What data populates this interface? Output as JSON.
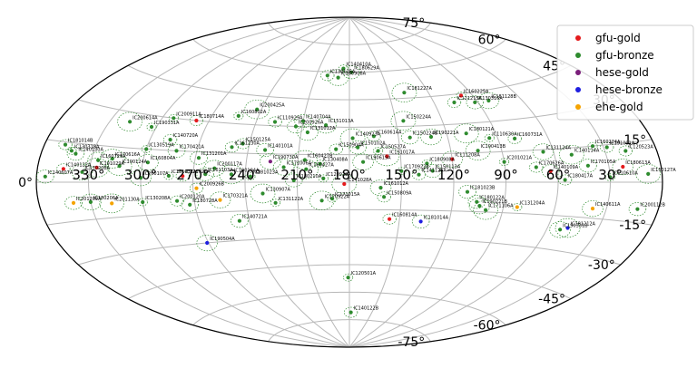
{
  "chart_data": {
    "type": "scatter",
    "projection": "aitoff",
    "title": "",
    "xlabel": "",
    "ylabel": "",
    "grid": true,
    "legend_position": "top-right",
    "lon_ticks": [
      "330°",
      "300°",
      "270°",
      "240°",
      "210°",
      "180°",
      "150°",
      "120°",
      "90°",
      "60°",
      "30°"
    ],
    "lon_tick_values": [
      330,
      300,
      270,
      240,
      210,
      180,
      150,
      120,
      90,
      60,
      30
    ],
    "lat_ticks": [
      "75°",
      "60°",
      "45°",
      "30°",
      "15°",
      "0°",
      "-15°",
      "-30°",
      "-45°",
      "-60°",
      "-75°"
    ],
    "lat_tick_values": [
      75,
      60,
      45,
      30,
      15,
      0,
      -15,
      -30,
      -45,
      -60,
      -75
    ],
    "series": [
      {
        "name": "gfu-gold",
        "color": "#e41a1c"
      },
      {
        "name": "gfu-bronze",
        "color": "#2e8b2e"
      },
      {
        "name": "hese-gold",
        "color": "#7b1f7b"
      },
      {
        "name": "hese-bronze",
        "color": "#1f1fe0"
      },
      {
        "name": "ehe-gold",
        "color": "#f5a300"
      }
    ],
    "events": [
      {
        "name": "IC140410A",
        "ra": 186,
        "dec": 62,
        "series": "gfu-bronze"
      },
      {
        "name": "IC130125A",
        "ra": 200,
        "dec": 58,
        "series": "gfu-bronze"
      },
      {
        "name": "IC180629A",
        "ra": 178,
        "dec": 60,
        "series": "gfu-bronze"
      },
      {
        "name": "IC160908A",
        "ra": 190,
        "dec": 57,
        "series": "gfu-bronze"
      },
      {
        "name": "IC181227A",
        "ra": 138,
        "dec": 48,
        "series": "gfu-bronze"
      },
      {
        "name": "IC160225A",
        "ra": 98,
        "dec": 44,
        "series": "gfu-gold"
      },
      {
        "name": "IC121215A",
        "ra": 106,
        "dec": 41,
        "series": "gfu-bronze"
      },
      {
        "name": "IC130316A",
        "ra": 92,
        "dec": 40,
        "series": "gfu-bronze"
      },
      {
        "name": "IC181128B",
        "ra": 82,
        "dec": 40,
        "series": "gfu-bronze"
      },
      {
        "name": "IC200425A",
        "ra": 243,
        "dec": 38,
        "series": "gfu-bronze"
      },
      {
        "name": "IC160802A",
        "ra": 253,
        "dec": 34,
        "series": "gfu-bronze"
      },
      {
        "name": "IC110929A",
        "ra": 228,
        "dec": 32,
        "series": "gfu-bronze"
      },
      {
        "name": "IC140704A",
        "ra": 210,
        "dec": 33,
        "series": "gfu-bronze"
      },
      {
        "name": "IC151013A",
        "ra": 195,
        "dec": 31,
        "series": "gfu-bronze"
      },
      {
        "name": "IC150224A",
        "ra": 145,
        "dec": 33,
        "series": "gfu-bronze"
      },
      {
        "name": "IC200911A",
        "ra": 293,
        "dec": 30,
        "series": "gfu-bronze"
      },
      {
        "name": "IC180714A",
        "ra": 278,
        "dec": 30,
        "series": "gfu-gold"
      },
      {
        "name": "IC200926A",
        "ra": 214,
        "dec": 30,
        "series": "gfu-bronze"
      },
      {
        "name": "IC131012A",
        "ra": 206,
        "dec": 27,
        "series": "gfu-bronze"
      },
      {
        "name": "IC200614A",
        "ra": 318,
        "dec": 26,
        "series": "gfu-bronze"
      },
      {
        "name": "IC190331A",
        "ra": 303,
        "dec": 25,
        "series": "gfu-bronze"
      },
      {
        "name": "IC160614A",
        "ra": 165,
        "dec": 25,
        "series": "gfu-bronze"
      },
      {
        "name": "IC150224B",
        "ra": 143,
        "dec": 24,
        "series": "gfu-bronze"
      },
      {
        "name": "IC190221A",
        "ra": 130,
        "dec": 24,
        "series": "gfu-bronze"
      },
      {
        "name": "IC180121A",
        "ra": 108,
        "dec": 25,
        "series": "gfu-bronze"
      },
      {
        "name": "IC110630A",
        "ra": 95,
        "dec": 22,
        "series": "gfu-bronze"
      },
      {
        "name": "IC160731A",
        "ra": 80,
        "dec": 21,
        "series": "gfu-bronze"
      },
      {
        "name": "IC140721A",
        "ra": 246,
        "dec": -20,
        "series": "gfu-bronze"
      },
      {
        "name": "IC190504A",
        "ra": 271,
        "dec": -30,
        "series": "hese-bronze"
      },
      {
        "name": "IC170922A",
        "ra": 196,
        "dec": -10,
        "series": "gfu-bronze"
      },
      {
        "name": "IC171015A",
        "ra": 190,
        "dec": -9,
        "series": "gfu-bronze"
      },
      {
        "name": "IC160814A",
        "ra": 156,
        "dec": -20,
        "series": "gfu-gold"
      },
      {
        "name": "IC181014A",
        "ra": 137,
        "dec": -21,
        "series": "hese-bronze"
      },
      {
        "name": "IC190331B",
        "ra": 52,
        "dec": -21,
        "series": "gfu-bronze"
      },
      {
        "name": "IC181212A",
        "ra": 48,
        "dec": -20,
        "series": "hese-bronze"
      },
      {
        "name": "IC120501A",
        "ra": 181,
        "dec": -52,
        "series": "gfu-bronze"
      },
      {
        "name": "IC140122B",
        "ra": 178,
        "dec": -71,
        "series": "gfu-bronze"
      },
      {
        "name": "IC201209A",
        "ra": 340,
        "dec": -8,
        "series": "ehe-gold"
      },
      {
        "name": "IC180206A",
        "ra": 330,
        "dec": -8,
        "series": "gfu-bronze"
      },
      {
        "name": "IC201130A",
        "ra": 318,
        "dec": -9,
        "series": "ehe-gold"
      },
      {
        "name": "IC130208A",
        "ra": 300,
        "dec": -9,
        "series": "gfu-bronze"
      },
      {
        "name": "IC200120A",
        "ra": 280,
        "dec": -9,
        "series": "gfu-bronze"
      },
      {
        "name": "IC180728A",
        "ra": 273,
        "dec": -11,
        "series": "gfu-bronze"
      },
      {
        "name": "IC170321A",
        "ra": 255,
        "dec": -9,
        "series": "ehe-gold"
      },
      {
        "name": "IC130907A",
        "ra": 230,
        "dec": -6,
        "series": "gfu-bronze"
      },
      {
        "name": "IC131122A",
        "ra": 223,
        "dec": -11,
        "series": "gfu-bronze"
      },
      {
        "name": "IC150809A",
        "ra": 160,
        "dec": -8,
        "series": "gfu-bronze"
      },
      {
        "name": "IC180122A",
        "ra": 106,
        "dec": -10,
        "series": "gfu-bronze"
      },
      {
        "name": "IC190221B",
        "ra": 104,
        "dec": -12,
        "series": "gfu-bronze"
      },
      {
        "name": "IC171106A",
        "ra": 100,
        "dec": -14,
        "series": "gfu-bronze"
      },
      {
        "name": "IC131204A",
        "ra": 82,
        "dec": -12,
        "series": "ehe-gold"
      },
      {
        "name": "IC140122A",
        "ra": 345,
        "dec": 5,
        "series": "gfu-gold"
      },
      {
        "name": "IC140607A",
        "ra": 355,
        "dec": 2,
        "series": "gfu-bronze"
      },
      {
        "name": "IC170208A",
        "ra": 334,
        "dec": 4,
        "series": "gfu-bronze"
      },
      {
        "name": "IC191029A",
        "ra": 326,
        "dec": 6,
        "series": "gfu-gold"
      },
      {
        "name": "IC130318A",
        "ra": 343,
        "dec": 12,
        "series": "gfu-bronze"
      },
      {
        "name": "IC181014B",
        "ra": 348,
        "dec": 14,
        "series": "gfu-bronze"
      },
      {
        "name": "IC140130A",
        "ra": 340,
        "dec": 11,
        "series": "gfu-bronze"
      },
      {
        "name": "IC160729A",
        "ra": 326,
        "dec": 9,
        "series": "gfu-bronze"
      },
      {
        "name": "IC170616A",
        "ra": 318,
        "dec": 10,
        "series": "gfu-bronze"
      },
      {
        "name": "IC130519A",
        "ra": 300,
        "dec": 15,
        "series": "gfu-bronze"
      },
      {
        "name": "IC140720A",
        "ra": 288,
        "dec": 20,
        "series": "gfu-bronze"
      },
      {
        "name": "IC170421A",
        "ra": 282,
        "dec": 15,
        "series": "gfu-bronze"
      },
      {
        "name": "IC160804A",
        "ra": 297,
        "dec": 9,
        "series": "gfu-bronze"
      },
      {
        "name": "IC190124A",
        "ra": 313,
        "dec": 7,
        "series": "gfu-bronze"
      },
      {
        "name": "IC181031A",
        "ra": 284,
        "dec": 3,
        "series": "gfu-bronze"
      },
      {
        "name": "IC121026A",
        "ra": 276,
        "dec": 3,
        "series": "gfu-gold"
      },
      {
        "name": "IC161103A",
        "ra": 263,
        "dec": 4,
        "series": "gfu-bronze"
      },
      {
        "name": "IC200117A",
        "ra": 258,
        "dec": 7,
        "series": "gfu-bronze"
      },
      {
        "name": "IC190104A",
        "ra": 248,
        "dec": 4,
        "series": "gfu-bronze"
      },
      {
        "name": "IC181023A",
        "ra": 237,
        "dec": 3,
        "series": "gfu-bronze"
      },
      {
        "name": "IC161230A",
        "ra": 250,
        "dec": 18,
        "series": "gfu-bronze"
      },
      {
        "name": "IC140101A",
        "ra": 230,
        "dec": 17,
        "series": "gfu-bronze"
      },
      {
        "name": "IC171006A",
        "ra": 218,
        "dec": 8,
        "series": "gfu-bronze"
      },
      {
        "name": "IC160427A",
        "ra": 205,
        "dec": 7,
        "series": "gfu-bronze"
      },
      {
        "name": "IC130408A",
        "ra": 197,
        "dec": 10,
        "series": "gfu-bronze"
      },
      {
        "name": "IC150904A",
        "ra": 188,
        "dec": 18,
        "series": "gfu-bronze"
      },
      {
        "name": "IC150102A",
        "ra": 175,
        "dec": 19,
        "series": "gfu-bronze"
      },
      {
        "name": "IC190619A",
        "ra": 172,
        "dec": 11,
        "series": "gfu-bronze"
      },
      {
        "name": "IC151017A",
        "ra": 158,
        "dec": 14,
        "series": "gfu-gold"
      },
      {
        "name": "IC170922B",
        "ra": 150,
        "dec": 6,
        "series": "gfu-bronze"
      },
      {
        "name": "IC141126A",
        "ra": 140,
        "dec": 4,
        "series": "gfu-bronze"
      },
      {
        "name": "IC150113A",
        "ra": 132,
        "dec": 6,
        "series": "gfu-bronze"
      },
      {
        "name": "IC111208A",
        "ra": 120,
        "dec": 12,
        "series": "gfu-gold"
      },
      {
        "name": "IC190413B",
        "ra": 104,
        "dec": 16,
        "series": "gfu-bronze"
      },
      {
        "name": "IC201021A",
        "ra": 90,
        "dec": 10,
        "series": "gfu-bronze"
      },
      {
        "name": "IC170626A",
        "ra": 72,
        "dec": 7,
        "series": "gfu-bronze"
      },
      {
        "name": "IC140109A",
        "ra": 64,
        "dec": 5,
        "series": "gfu-gold"
      },
      {
        "name": "IC131124A",
        "ra": 66,
        "dec": 14,
        "series": "gfu-bronze"
      },
      {
        "name": "IC140114A",
        "ra": 50,
        "dec": 12,
        "series": "gfu-bronze"
      },
      {
        "name": "IC160224A",
        "ra": 36,
        "dec": 15,
        "series": "gfu-bronze"
      },
      {
        "name": "IC120523A",
        "ra": 18,
        "dec": 12,
        "series": "gfu-bronze"
      },
      {
        "name": "IC170105A",
        "ra": 42,
        "dec": 7,
        "series": "gfu-bronze"
      },
      {
        "name": "IC180613A",
        "ra": 22,
        "dec": 6,
        "series": "gfu-gold"
      },
      {
        "name": "IC150127A",
        "ra": 8,
        "dec": 3,
        "series": "gfu-bronze"
      },
      {
        "name": "IC110610A",
        "ra": 30,
        "dec": 2,
        "series": "gfu-bronze"
      },
      {
        "name": "IC180417A",
        "ra": 56,
        "dec": 1,
        "series": "gfu-bronze"
      },
      {
        "name": "IC181023B",
        "ra": 112,
        "dec": -5,
        "series": "gfu-bronze"
      },
      {
        "name": "IC161012A",
        "ra": 162,
        "dec": -3,
        "series": "gfu-bronze"
      },
      {
        "name": "IC141028A",
        "ra": 183,
        "dec": -1,
        "series": "gfu-gold"
      },
      {
        "name": "IC120922A",
        "ra": 195,
        "dec": 2,
        "series": "gfu-bronze"
      },
      {
        "name": "IC200926B",
        "ra": 268,
        "dec": -3,
        "series": "ehe-gold"
      },
      {
        "name": "IC180210A",
        "ra": 212,
        "dec": 1,
        "series": "gfu-bronze"
      },
      {
        "name": "IC200107A",
        "ra": 300,
        "dec": 2,
        "series": "gfu-bronze"
      },
      {
        "name": "IC140923A",
        "ra": 178,
        "dec": 24,
        "series": "gfu-bronze"
      },
      {
        "name": "IC150527A",
        "ra": 163,
        "dec": 17,
        "series": "gfu-bronze"
      },
      {
        "name": "IC150125A",
        "ra": 244,
        "dec": 20,
        "series": "gfu-bronze"
      },
      {
        "name": "IC131201A",
        "ra": 268,
        "dec": 12,
        "series": "gfu-bronze"
      },
      {
        "name": "IC190730A",
        "ra": 226,
        "dec": 11,
        "series": "hese-gold"
      },
      {
        "name": "IC160427B",
        "ra": 206,
        "dec": 12,
        "series": "gfu-bronze"
      },
      {
        "name": "IC180908A",
        "ra": 135,
        "dec": 10,
        "series": "gfu-bronze"
      },
      {
        "name": "IC191001A",
        "ra": 28,
        "dec": 14,
        "series": "gfu-bronze"
      },
      {
        "name": "IC200112B",
        "ra": 12,
        "dec": -10,
        "series": "gfu-bronze"
      },
      {
        "name": "IC140611A",
        "ra": 38,
        "dec": -11,
        "series": "ehe-gold"
      }
    ]
  }
}
